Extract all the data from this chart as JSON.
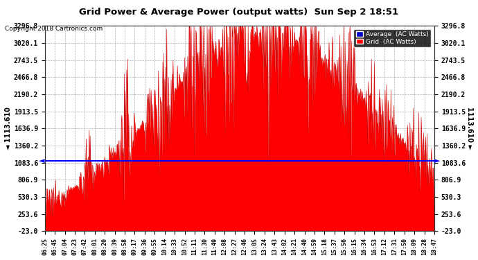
{
  "title": "Grid Power & Average Power (output watts)  Sun Sep 2 18:51",
  "copyright": "Copyright 2018 Cartronics.com",
  "average_value": 1113.61,
  "average_label": "1113.610",
  "yticks": [
    -23.0,
    253.6,
    530.3,
    806.9,
    1083.6,
    1360.2,
    1636.9,
    1913.5,
    2190.2,
    2466.8,
    2743.5,
    3020.1,
    3296.8
  ],
  "ymin": -23.0,
  "ymax": 3296.8,
  "background_color": "#ffffff",
  "plot_bg_color": "#ffffff",
  "grid_color": "#999999",
  "fill_color": "#ff0000",
  "line_color": "#cc0000",
  "average_line_color": "#0000ff",
  "legend_avg_color": "#0000cd",
  "legend_grid_color": "#ff0000",
  "xtick_labels": [
    "06:25",
    "06:45",
    "07:04",
    "07:23",
    "07:42",
    "08:01",
    "08:20",
    "08:39",
    "08:58",
    "09:17",
    "09:36",
    "09:55",
    "10:14",
    "10:33",
    "10:52",
    "11:11",
    "11:30",
    "11:49",
    "12:08",
    "12:27",
    "12:46",
    "13:05",
    "13:24",
    "13:43",
    "14:02",
    "14:21",
    "14:40",
    "14:59",
    "15:18",
    "15:37",
    "15:56",
    "16:15",
    "16:34",
    "16:53",
    "17:12",
    "17:31",
    "17:50",
    "18:09",
    "18:28",
    "18:47"
  ],
  "n_xticks": 40
}
